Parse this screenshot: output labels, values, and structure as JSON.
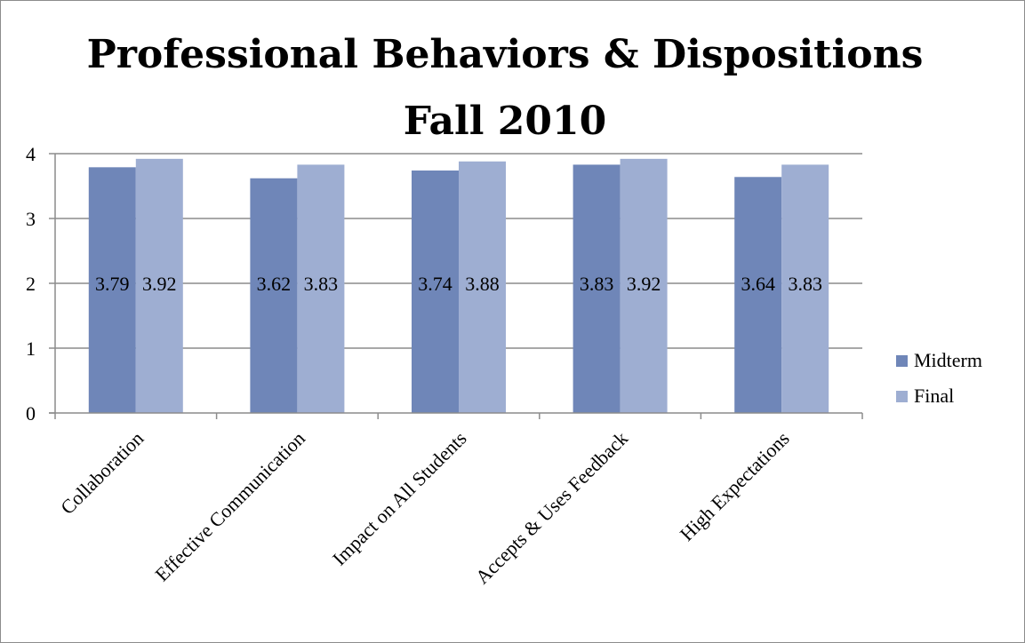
{
  "chart_data": {
    "type": "bar",
    "title": [
      "Professional Behaviors & Dispositions",
      "Fall 2010"
    ],
    "categories": [
      "Collaboration",
      "Effective Communication",
      "Impact on All Students",
      "Accepts & Uses Feedback",
      "High Expectations"
    ],
    "series": [
      {
        "name": "Midterm",
        "values": [
          3.79,
          3.62,
          3.74,
          3.83,
          3.64
        ],
        "labels": [
          "3.79",
          "3.62",
          "3.74",
          "3.83",
          "3.64"
        ],
        "color": "#6f86b8"
      },
      {
        "name": "Final",
        "values": [
          3.92,
          3.83,
          3.88,
          3.92,
          3.83
        ],
        "labels": [
          "3.92",
          "3.83",
          "3.88",
          "3.92",
          "3.83"
        ],
        "color": "#9eaed2"
      }
    ],
    "yticks": [
      "0",
      "1",
      "2",
      "3",
      "4"
    ],
    "ylim": [
      0,
      4
    ],
    "grid": true,
    "legend_position": "right",
    "gridline_color": "#8c8c8c"
  }
}
